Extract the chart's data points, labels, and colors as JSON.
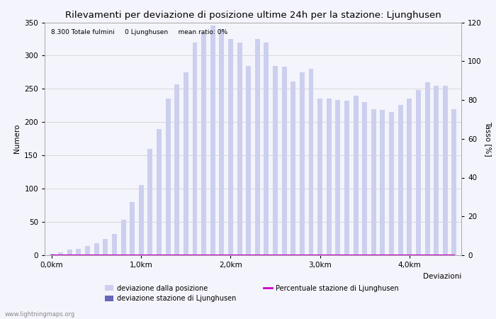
{
  "title": "Rilevamenti per deviazione di posizione ultime 24h per la stazione: Ljunghusen",
  "ylabel_left": "Numero",
  "ylabel_right": "Tasso [%]",
  "xlabel": "Deviazioni",
  "info_text": "8.300 Totale fulmini     0 Ljunghusen     mean ratio: 0%",
  "watermark": "www.lightningmaps.org",
  "ylim_left": [
    0,
    350
  ],
  "ylim_right": [
    0,
    120
  ],
  "xtick_labels": [
    "0,0km",
    "1,0km",
    "2,0km",
    "3,0km",
    "4,0km"
  ],
  "bar_color_light": "#ccd0ee",
  "bar_color_dark": "#6666bb",
  "line_color": "#cc00cc",
  "background_color": "#f4f4fc",
  "grid_color": "#cccccc",
  "title_fontsize": 9.5,
  "label_fontsize": 7.5,
  "tick_fontsize": 7.5,
  "deviazione_dalla_posizione": [
    2,
    4,
    8,
    10,
    14,
    18,
    25,
    32,
    53,
    80,
    105,
    160,
    190,
    235,
    257,
    275,
    320,
    335,
    345,
    340,
    325,
    320,
    285,
    325,
    320,
    285,
    283,
    261,
    275,
    280,
    235,
    235,
    233,
    232,
    240,
    230,
    220,
    218,
    215,
    226,
    235,
    248,
    260,
    255,
    255,
    220
  ],
  "deviazione_stazione": [
    0,
    0,
    0,
    0,
    0,
    0,
    0,
    0,
    0,
    0,
    0,
    0,
    0,
    0,
    0,
    0,
    0,
    0,
    0,
    0,
    0,
    0,
    0,
    0,
    0,
    0,
    0,
    0,
    0,
    0,
    0,
    0,
    0,
    0,
    0,
    0,
    0,
    0,
    0,
    0,
    0,
    0,
    0,
    0,
    0,
    0
  ],
  "percentuale": [
    0,
    0,
    0,
    0,
    0,
    0,
    0,
    0,
    0,
    0,
    0,
    0,
    0,
    0,
    0,
    0,
    0,
    0,
    0,
    0,
    0,
    0,
    0,
    0,
    0,
    0,
    0,
    0,
    0,
    0,
    0,
    0,
    0,
    0,
    0,
    0,
    0,
    0,
    0,
    0,
    0,
    0,
    0,
    0,
    0,
    0
  ],
  "legend_labels": [
    "deviazione dalla posizione",
    "deviazione stazione di Ljunghusen",
    "Percentuale stazione di Ljunghusen"
  ]
}
